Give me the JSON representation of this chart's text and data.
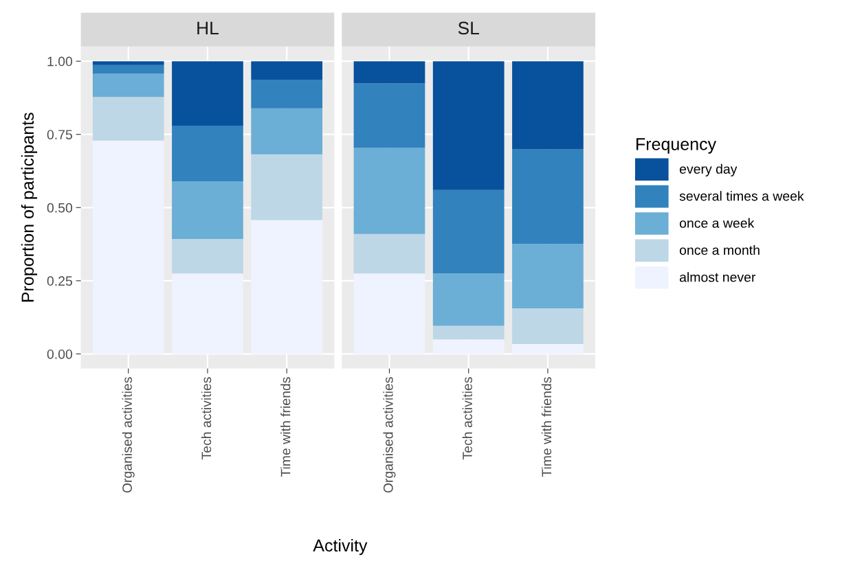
{
  "chart_data": [
    {
      "type": "bar",
      "title": "HL",
      "xlabel": "Activity",
      "legend_title": "Frequency",
      "legend": "right",
      "ylabel": "Proportion of participants",
      "stacked": true,
      "categories": [
        "Organised activities",
        "Tech activities",
        "Time with friends"
      ],
      "series": [
        {
          "name": "almost never",
          "color": "#eff3ff",
          "values": [
            0.729,
            0.275,
            0.457
          ]
        },
        {
          "name": "once a month",
          "color": "#bdd7e7",
          "values": [
            0.149,
            0.118,
            0.225
          ]
        },
        {
          "name": "once a week",
          "color": "#6baed6",
          "values": [
            0.08,
            0.196,
            0.157
          ]
        },
        {
          "name": "several times a week",
          "color": "#3182bd",
          "values": [
            0.029,
            0.191,
            0.098
          ]
        },
        {
          "name": "every day",
          "color": "#08519c",
          "values": [
            0.013,
            0.22,
            0.063
          ]
        }
      ],
      "ylim": [
        -0.05,
        1.05
      ],
      "yticks": [
        {
          "value": 0,
          "label": "0.00"
        },
        {
          "value": 0.25,
          "label": "0.25"
        },
        {
          "value": 0.5,
          "label": "0.50"
        },
        {
          "value": 0.75,
          "label": "0.75"
        },
        {
          "value": 1,
          "label": "1.00"
        }
      ],
      "grid": true
    },
    {
      "type": "bar",
      "title": "SL",
      "stacked": true,
      "tick_labels": "x",
      "categories": [
        "Organised activities",
        "Tech activities",
        "Time with friends"
      ],
      "series": [
        {
          "color": "#eff3ff",
          "values": [
            0.275,
            0.05,
            0.034
          ]
        },
        {
          "color": "#bdd7e7",
          "values": [
            0.135,
            0.046,
            0.122
          ]
        },
        {
          "color": "#6baed6",
          "values": [
            0.294,
            0.179,
            0.22
          ]
        },
        {
          "color": "#3182bd",
          "values": [
            0.22,
            0.285,
            0.323
          ]
        },
        {
          "color": "#08519c",
          "values": [
            0.076,
            0.44,
            0.301
          ]
        }
      ],
      "ylim": [
        -0.05,
        1.05
      ],
      "yticks": [
        0,
        0.25,
        0.5,
        0.75,
        1
      ],
      "grid": true
    }
  ]
}
